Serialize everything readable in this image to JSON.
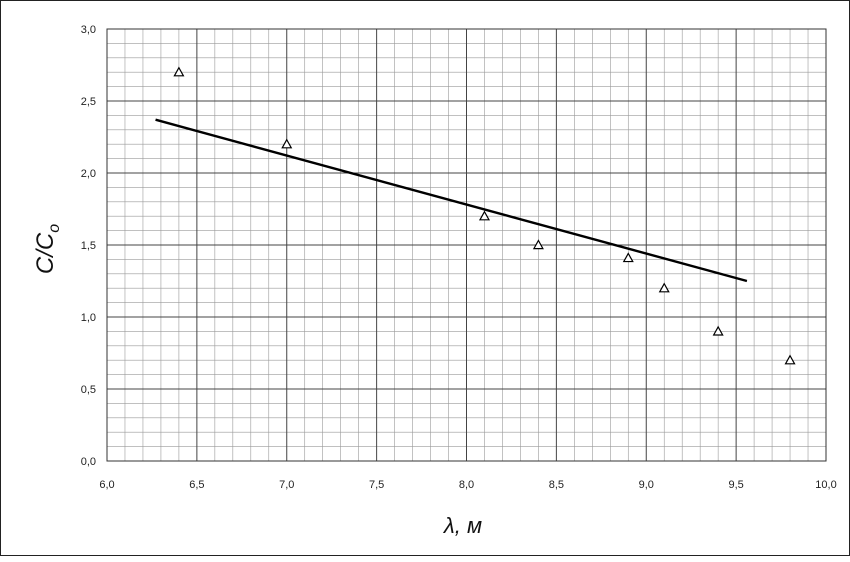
{
  "chart_data": {
    "type": "scatter",
    "title": "",
    "xlabel": "λ, м",
    "ylabel_main": "C/C",
    "ylabel_sub": "o",
    "xlim": [
      6.0,
      10.0
    ],
    "ylim": [
      0.0,
      3.0
    ],
    "x_major_ticks": [
      6.0,
      6.5,
      7.0,
      7.5,
      8.0,
      8.5,
      9.0,
      9.5,
      10.0
    ],
    "y_major_ticks": [
      0.0,
      0.5,
      1.0,
      1.5,
      2.0,
      2.5,
      3.0
    ],
    "x_tick_labels": [
      "6,0",
      "6,5",
      "7,0",
      "7,5",
      "8,0",
      "8,5",
      "9,0",
      "9,5",
      "10,0"
    ],
    "y_tick_labels": [
      "0,0",
      "0,5",
      "1,0",
      "1,5",
      "2,0",
      "2,5",
      "3,0"
    ],
    "x_minor_step": 0.1,
    "y_minor_step": 0.1,
    "grid": true,
    "marker": "open-triangle",
    "points": [
      {
        "x": 6.4,
        "y": 2.7
      },
      {
        "x": 7.0,
        "y": 2.2
      },
      {
        "x": 8.1,
        "y": 1.7
      },
      {
        "x": 8.4,
        "y": 1.5
      },
      {
        "x": 8.9,
        "y": 1.41
      },
      {
        "x": 9.1,
        "y": 1.2
      },
      {
        "x": 9.4,
        "y": 0.9
      },
      {
        "x": 9.8,
        "y": 0.7
      }
    ],
    "trendline": {
      "x": [
        6.27,
        9.56
      ],
      "y": [
        2.37,
        1.25
      ]
    }
  }
}
